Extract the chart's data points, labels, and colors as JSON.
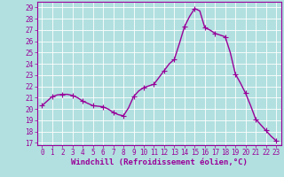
{
  "x": [
    0,
    0.5,
    1,
    1.5,
    2,
    2.5,
    3,
    3.5,
    4,
    4.5,
    5,
    5.5,
    6,
    6.5,
    7,
    7.5,
    8,
    8.5,
    9,
    9.5,
    10,
    10.5,
    11,
    11.5,
    12,
    12.5,
    13,
    13.5,
    14,
    14.5,
    15,
    15.5,
    16,
    16.5,
    17,
    17.5,
    18,
    18.5,
    19,
    19.5,
    20,
    20.5,
    21,
    21.5,
    22,
    22.5,
    23
  ],
  "y": [
    20.3,
    20.7,
    21.1,
    21.25,
    21.3,
    21.3,
    21.2,
    21.0,
    20.7,
    20.5,
    20.3,
    20.25,
    20.2,
    20.0,
    19.7,
    19.5,
    19.4,
    20.1,
    21.1,
    21.6,
    21.9,
    22.05,
    22.2,
    22.8,
    23.4,
    24.0,
    24.4,
    25.8,
    27.3,
    28.2,
    28.9,
    28.7,
    27.2,
    27.0,
    26.7,
    26.55,
    26.4,
    25.0,
    23.1,
    22.3,
    21.4,
    20.3,
    19.1,
    18.6,
    18.1,
    17.6,
    17.2
  ],
  "marker_x": [
    0,
    1,
    2,
    3,
    4,
    5,
    6,
    7,
    8,
    9,
    10,
    11,
    12,
    13,
    14,
    15,
    16,
    17,
    18,
    19,
    20,
    21,
    22,
    23
  ],
  "marker_y": [
    20.3,
    21.1,
    21.3,
    21.2,
    20.7,
    20.3,
    20.2,
    19.7,
    19.4,
    21.1,
    21.9,
    22.2,
    23.4,
    24.4,
    27.3,
    28.9,
    27.2,
    26.7,
    26.4,
    23.1,
    21.4,
    19.1,
    18.1,
    17.2
  ],
  "line_color": "#990099",
  "marker": "+",
  "markersize": 4,
  "linewidth": 1.0,
  "xlim": [
    -0.5,
    23.5
  ],
  "ylim": [
    16.8,
    29.5
  ],
  "yticks": [
    17,
    18,
    19,
    20,
    21,
    22,
    23,
    24,
    25,
    26,
    27,
    28,
    29
  ],
  "xticks": [
    0,
    1,
    2,
    3,
    4,
    5,
    6,
    7,
    8,
    9,
    10,
    11,
    12,
    13,
    14,
    15,
    16,
    17,
    18,
    19,
    20,
    21,
    22,
    23
  ],
  "xlabel": "Windchill (Refroidissement éolien,°C)",
  "bg_color": "#b2e0e0",
  "grid_color": "#ffffff",
  "tick_color": "#990099",
  "label_color": "#990099",
  "xlabel_fontsize": 6.5,
  "tick_fontsize": 5.5
}
